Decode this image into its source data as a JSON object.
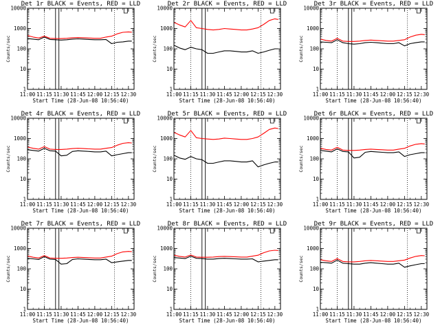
{
  "colors": {
    "events": "#000000",
    "lld": "#ff0000",
    "axes": "#000000",
    "background": "#ffffff"
  },
  "chart_data": [
    {
      "type": "line",
      "title": "Det 1r BLACK = Events, RED = LLD",
      "xlabel": "Start Time (28-Jun-08 10:56:40)",
      "ylabel": "Counts/sec",
      "xticks": [
        "11:00",
        "11:15",
        "11:30",
        "11:45",
        "12:00",
        "12:15",
        "12:30"
      ],
      "yticks": [
        "1",
        "10",
        "100",
        "1000",
        "10000"
      ],
      "ylim": [
        1,
        10000
      ],
      "ylog": true,
      "grid": false,
      "x": [
        "11:00",
        "11:05",
        "11:10",
        "11:15",
        "11:20",
        "11:25",
        "11:30",
        "11:35",
        "11:40",
        "11:45",
        "11:50",
        "11:55",
        "12:00",
        "12:05",
        "12:10",
        "12:15",
        "12:20",
        "12:25",
        "12:30",
        "12:33"
      ],
      "series": [
        {
          "name": "Events",
          "color": "#000000",
          "values": [
            320,
            300,
            280,
            380,
            290,
            280,
            270,
            280,
            300,
            310,
            300,
            290,
            280,
            280,
            290,
            180,
            210,
            220,
            240,
            240
          ]
        },
        {
          "name": "LLD",
          "color": "#ff0000",
          "values": [
            450,
            380,
            340,
            420,
            330,
            320,
            320,
            330,
            350,
            360,
            350,
            340,
            330,
            330,
            380,
            420,
            550,
            650,
            680,
            660
          ]
        }
      ]
    },
    {
      "type": "line",
      "title": "Det 2r BLACK = Events, RED = LLD",
      "xlabel": "Start Time (28-Jun-08 10:56:40)",
      "ylabel": "Counts/sec",
      "xticks": [
        "11:00",
        "11:15",
        "11:30",
        "11:45",
        "12:00",
        "12:15",
        "12:30"
      ],
      "yticks": [
        "1",
        "10",
        "100",
        "1000",
        "10000"
      ],
      "ylim": [
        1,
        10000
      ],
      "ylog": true,
      "grid": false,
      "x": [
        "11:00",
        "11:05",
        "11:10",
        "11:15",
        "11:20",
        "11:25",
        "11:30",
        "11:35",
        "11:40",
        "11:45",
        "11:50",
        "11:55",
        "12:00",
        "12:05",
        "12:10",
        "12:15",
        "12:20",
        "12:25",
        "12:30",
        "12:33"
      ],
      "series": [
        {
          "name": "Events",
          "color": "#000000",
          "values": [
            150,
            110,
            90,
            120,
            100,
            90,
            60,
            60,
            70,
            80,
            80,
            75,
            70,
            70,
            80,
            60,
            70,
            85,
            100,
            100
          ]
        },
        {
          "name": "LLD",
          "color": "#ff0000",
          "values": [
            2000,
            1500,
            1200,
            2500,
            1100,
            1000,
            900,
            850,
            900,
            1000,
            950,
            900,
            850,
            850,
            950,
            1100,
            1600,
            2500,
            3000,
            2800
          ]
        }
      ]
    },
    {
      "type": "line",
      "title": "Det 3r BLACK = Events, RED = LLD",
      "xlabel": "Start Time (28-Jun-08 10:56:40)",
      "ylabel": "Counts/sec",
      "xticks": [
        "11:00",
        "11:15",
        "11:30",
        "11:45",
        "12:00",
        "12:15",
        "12:30"
      ],
      "yticks": [
        "1",
        "10",
        "100",
        "1000",
        "10000"
      ],
      "ylim": [
        1,
        10000
      ],
      "ylog": true,
      "grid": false,
      "x": [
        "11:00",
        "11:05",
        "11:10",
        "11:15",
        "11:20",
        "11:25",
        "11:30",
        "11:35",
        "11:40",
        "11:45",
        "11:50",
        "11:55",
        "12:00",
        "12:05",
        "12:10",
        "12:15",
        "12:20",
        "12:25",
        "12:30",
        "12:33"
      ],
      "series": [
        {
          "name": "Events",
          "color": "#000000",
          "values": [
            220,
            210,
            200,
            280,
            200,
            180,
            170,
            180,
            200,
            210,
            200,
            190,
            180,
            180,
            200,
            140,
            180,
            200,
            220,
            220
          ]
        },
        {
          "name": "LLD",
          "color": "#ff0000",
          "values": [
            300,
            260,
            240,
            330,
            240,
            230,
            230,
            240,
            260,
            270,
            260,
            250,
            240,
            240,
            260,
            280,
            380,
            470,
            520,
            500
          ]
        }
      ]
    },
    {
      "type": "line",
      "title": "Det 4r BLACK = Events, RED = LLD",
      "xlabel": "Start Time (28-Jun-08 10:56:40)",
      "ylabel": "Counts/sec",
      "xticks": [
        "11:00",
        "11:15",
        "11:30",
        "11:45",
        "12:00",
        "12:15",
        "12:30"
      ],
      "yticks": [
        "1",
        "10",
        "100",
        "1000",
        "10000"
      ],
      "ylim": [
        1,
        10000
      ],
      "ylog": true,
      "grid": false,
      "x": [
        "11:00",
        "11:05",
        "11:10",
        "11:15",
        "11:20",
        "11:25",
        "11:30",
        "11:35",
        "11:40",
        "11:45",
        "11:50",
        "11:55",
        "12:00",
        "12:05",
        "12:10",
        "12:15",
        "12:20",
        "12:25",
        "12:30",
        "12:33"
      ],
      "series": [
        {
          "name": "Events",
          "color": "#000000",
          "values": [
            280,
            260,
            240,
            330,
            250,
            240,
            140,
            150,
            230,
            250,
            240,
            230,
            220,
            220,
            240,
            140,
            160,
            180,
            200,
            200
          ]
        },
        {
          "name": "LLD",
          "color": "#ff0000",
          "values": [
            380,
            330,
            300,
            400,
            300,
            290,
            290,
            300,
            320,
            330,
            320,
            310,
            300,
            300,
            330,
            360,
            470,
            580,
            620,
            600
          ]
        }
      ]
    },
    {
      "type": "line",
      "title": "Det 5r BLACK = Events, RED = LLD",
      "xlabel": "Start Time (28-Jun-08 10:56:40)",
      "ylabel": "Counts/sec",
      "xticks": [
        "11:00",
        "11:15",
        "11:30",
        "11:45",
        "12:00",
        "12:15",
        "12:30"
      ],
      "yticks": [
        "1",
        "10",
        "100",
        "1000",
        "10000"
      ],
      "ylim": [
        1,
        10000
      ],
      "ylog": true,
      "grid": false,
      "x": [
        "11:00",
        "11:05",
        "11:10",
        "11:15",
        "11:20",
        "11:25",
        "11:30",
        "11:35",
        "11:40",
        "11:45",
        "11:50",
        "11:55",
        "12:00",
        "12:05",
        "12:10",
        "12:15",
        "12:20",
        "12:25",
        "12:30",
        "12:33"
      ],
      "series": [
        {
          "name": "Events",
          "color": "#000000",
          "values": [
            150,
            110,
            95,
            130,
            100,
            90,
            60,
            60,
            70,
            80,
            80,
            75,
            70,
            70,
            80,
            40,
            50,
            60,
            70,
            70
          ]
        },
        {
          "name": "LLD",
          "color": "#ff0000",
          "values": [
            2000,
            1500,
            1200,
            2500,
            1100,
            1000,
            950,
            900,
            950,
            1050,
            1000,
            950,
            900,
            900,
            1000,
            1200,
            1800,
            2800,
            3300,
            3100
          ]
        }
      ]
    },
    {
      "type": "line",
      "title": "Det 6r BLACK = Events, RED = LLD",
      "xlabel": "Start Time (28-Jun-08 10:56:40)",
      "ylabel": "Counts/sec",
      "xticks": [
        "11:00",
        "11:15",
        "11:30",
        "11:45",
        "12:00",
        "12:15",
        "12:30"
      ],
      "yticks": [
        "1",
        "10",
        "100",
        "1000",
        "10000"
      ],
      "ylim": [
        1,
        10000
      ],
      "ylog": true,
      "grid": false,
      "x": [
        "11:00",
        "11:05",
        "11:10",
        "11:15",
        "11:20",
        "11:25",
        "11:30",
        "11:35",
        "11:40",
        "11:45",
        "11:50",
        "11:55",
        "12:00",
        "12:05",
        "12:10",
        "12:15",
        "12:20",
        "12:25",
        "12:30",
        "12:33"
      ],
      "series": [
        {
          "name": "Events",
          "color": "#000000",
          "values": [
            260,
            240,
            220,
            310,
            230,
            220,
            110,
            120,
            210,
            230,
            220,
            210,
            200,
            200,
            220,
            130,
            160,
            180,
            200,
            200
          ]
        },
        {
          "name": "LLD",
          "color": "#ff0000",
          "values": [
            330,
            290,
            270,
            370,
            270,
            260,
            260,
            270,
            290,
            300,
            290,
            280,
            270,
            270,
            300,
            330,
            430,
            520,
            560,
            540
          ]
        }
      ]
    },
    {
      "type": "line",
      "title": "Det 7r BLACK = Events, RED = LLD",
      "xlabel": "Start Time (28-Jun-08 10:56:40)",
      "ylabel": "Counts/sec",
      "xticks": [
        "11:00",
        "11:15",
        "11:30",
        "11:45",
        "12:00",
        "12:15",
        "12:30"
      ],
      "yticks": [
        "1",
        "10",
        "100",
        "1000",
        "10000"
      ],
      "ylim": [
        1,
        10000
      ],
      "ylog": true,
      "grid": false,
      "x": [
        "11:00",
        "11:05",
        "11:10",
        "11:15",
        "11:20",
        "11:25",
        "11:30",
        "11:35",
        "11:40",
        "11:45",
        "11:50",
        "11:55",
        "12:00",
        "12:05",
        "12:10",
        "12:15",
        "12:20",
        "12:25",
        "12:30",
        "12:33"
      ],
      "series": [
        {
          "name": "Events",
          "color": "#000000",
          "values": [
            330,
            310,
            290,
            400,
            300,
            290,
            170,
            180,
            290,
            310,
            300,
            290,
            280,
            280,
            300,
            200,
            220,
            240,
            260,
            260
          ]
        },
        {
          "name": "LLD",
          "color": "#ff0000",
          "values": [
            430,
            370,
            340,
            450,
            340,
            330,
            330,
            340,
            360,
            370,
            360,
            350,
            340,
            340,
            380,
            420,
            560,
            680,
            720,
            700
          ]
        }
      ]
    },
    {
      "type": "line",
      "title": "Det 8r BLACK = Events, RED = LLD",
      "xlabel": "Start Time (28-Jun-08 10:56:40)",
      "ylabel": "Counts/sec",
      "xticks": [
        "11:00",
        "11:15",
        "11:30",
        "11:45",
        "12:00",
        "12:15",
        "12:30"
      ],
      "yticks": [
        "1",
        "10",
        "100",
        "1000",
        "10000"
      ],
      "ylim": [
        1,
        10000
      ],
      "ylog": true,
      "grid": false,
      "x": [
        "11:00",
        "11:05",
        "11:10",
        "11:15",
        "11:20",
        "11:25",
        "11:30",
        "11:35",
        "11:40",
        "11:45",
        "11:50",
        "11:55",
        "12:00",
        "12:05",
        "12:10",
        "12:15",
        "12:20",
        "12:25",
        "12:30",
        "12:33"
      ],
      "series": [
        {
          "name": "Events",
          "color": "#000000",
          "values": [
            360,
            340,
            320,
            420,
            330,
            320,
            300,
            300,
            320,
            330,
            320,
            310,
            300,
            300,
            310,
            220,
            240,
            260,
            280,
            280
          ]
        },
        {
          "name": "LLD",
          "color": "#ff0000",
          "values": [
            470,
            410,
            380,
            480,
            380,
            370,
            370,
            380,
            400,
            410,
            400,
            390,
            380,
            380,
            420,
            470,
            620,
            760,
            820,
            800
          ]
        }
      ]
    },
    {
      "type": "line",
      "title": "Det 9r BLACK = Events, RED = LLD",
      "xlabel": "Start Time (28-Jun-08 10:56:40)",
      "ylabel": "Counts/sec",
      "xticks": [
        "11:00",
        "11:15",
        "11:30",
        "11:45",
        "12:00",
        "12:15",
        "12:30"
      ],
      "yticks": [
        "1",
        "10",
        "100",
        "1000",
        "10000"
      ],
      "ylim": [
        1,
        10000
      ],
      "ylog": true,
      "grid": false,
      "x": [
        "11:00",
        "11:05",
        "11:10",
        "11:15",
        "11:20",
        "11:25",
        "11:30",
        "11:35",
        "11:40",
        "11:45",
        "11:50",
        "11:55",
        "12:00",
        "12:05",
        "12:10",
        "12:15",
        "12:20",
        "12:25",
        "12:30",
        "12:33"
      ],
      "series": [
        {
          "name": "Events",
          "color": "#000000",
          "values": [
            210,
            200,
            190,
            270,
            190,
            180,
            170,
            170,
            190,
            200,
            190,
            180,
            170,
            170,
            190,
            120,
            140,
            160,
            180,
            180
          ]
        },
        {
          "name": "LLD",
          "color": "#ff0000",
          "values": [
            280,
            250,
            230,
            320,
            230,
            220,
            220,
            230,
            250,
            260,
            250,
            240,
            230,
            230,
            250,
            270,
            340,
            410,
            450,
            440
          ]
        }
      ]
    }
  ]
}
